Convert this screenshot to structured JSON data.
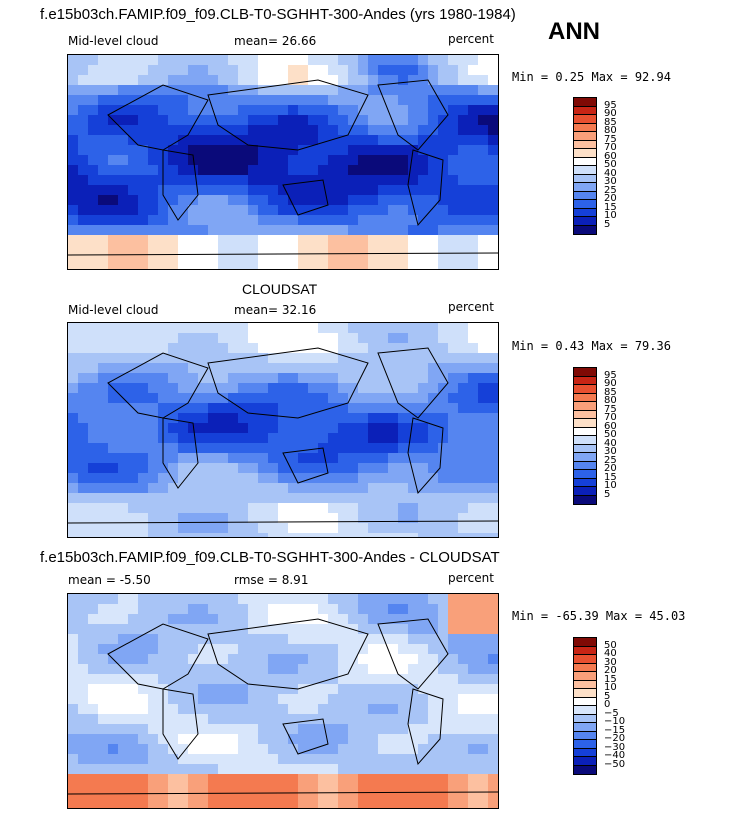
{
  "header": {
    "title": "f.e15b03ch.FAMIP.f09_f09.CLB-T0-SGHHT-300-Andes (yrs 1980-1984)",
    "season": "ANN"
  },
  "panels": [
    {
      "left_label": "Mid-level cloud",
      "mean_text": "mean=  26.66",
      "units": "percent",
      "minmax": "Min =    0.25 Max =  92.94"
    },
    {
      "title": "CLOUDSAT",
      "left_label": "Mid-level cloud",
      "mean_text": "mean=  32.16",
      "units": "percent",
      "minmax": "Min =    0.43 Max =  79.36"
    },
    {
      "title": "f.e15b03ch.FAMIP.f09_f09.CLB-T0-SGHHT-300-Andes - CLOUDSAT",
      "left_label": "mean =  -5.50",
      "mean_text": "rmse =   8.91",
      "units": "percent",
      "minmax": "Min = -65.39 Max =  45.03"
    }
  ],
  "chart_data": [
    {
      "type": "heatmap",
      "title": "f.e15b03ch.FAMIP.f09_f09.CLB-T0-SGHHT-300-Andes (yrs 1980-1984)",
      "variable": "Mid-level cloud",
      "season": "ANN",
      "units": "percent",
      "mean": 26.66,
      "min": 0.25,
      "max": 92.94,
      "colorbar_levels": [
        5,
        10,
        15,
        20,
        25,
        30,
        40,
        50,
        60,
        70,
        75,
        80,
        85,
        90,
        95
      ],
      "colors": [
        "#0a0a7a",
        "#0b20b8",
        "#1540d8",
        "#2d62e8",
        "#5585f0",
        "#80a6f4",
        "#a8c4f6",
        "#cfe0fa",
        "#ffffff",
        "#fde0c8",
        "#fcc0a0",
        "#f9a07a",
        "#f47a50",
        "#e85030",
        "#c82515",
        "#800a05"
      ]
    },
    {
      "type": "heatmap",
      "title": "CLOUDSAT",
      "variable": "Mid-level cloud",
      "units": "percent",
      "mean": 32.16,
      "min": 0.43,
      "max": 79.36,
      "colorbar_levels": [
        5,
        10,
        15,
        20,
        25,
        30,
        40,
        50,
        60,
        70,
        75,
        80,
        85,
        90,
        95
      ],
      "colors": [
        "#0a0a7a",
        "#0b20b8",
        "#1540d8",
        "#2d62e8",
        "#5585f0",
        "#80a6f4",
        "#a8c4f6",
        "#cfe0fa",
        "#ffffff",
        "#fde0c8",
        "#fcc0a0",
        "#f9a07a",
        "#f47a50",
        "#e85030",
        "#c82515",
        "#800a05"
      ]
    },
    {
      "type": "heatmap",
      "title": "f.e15b03ch.FAMIP.f09_f09.CLB-T0-SGHHT-300-Andes - CLOUDSAT",
      "units": "percent",
      "mean": -5.5,
      "rmse": 8.91,
      "min": -65.39,
      "max": 45.03,
      "colorbar_levels": [
        -50,
        -40,
        -30,
        -20,
        -15,
        -10,
        -5,
        0,
        5,
        10,
        15,
        20,
        30,
        40,
        50
      ],
      "colors": [
        "#0a0a7a",
        "#0b20b8",
        "#1540d8",
        "#2d62e8",
        "#5585f0",
        "#80a6f4",
        "#a8c4f6",
        "#d8e6fb",
        "#ffffff",
        "#fde0c8",
        "#fcc0a0",
        "#f9a07a",
        "#f47a50",
        "#e85030",
        "#c82515",
        "#800a05"
      ]
    }
  ]
}
